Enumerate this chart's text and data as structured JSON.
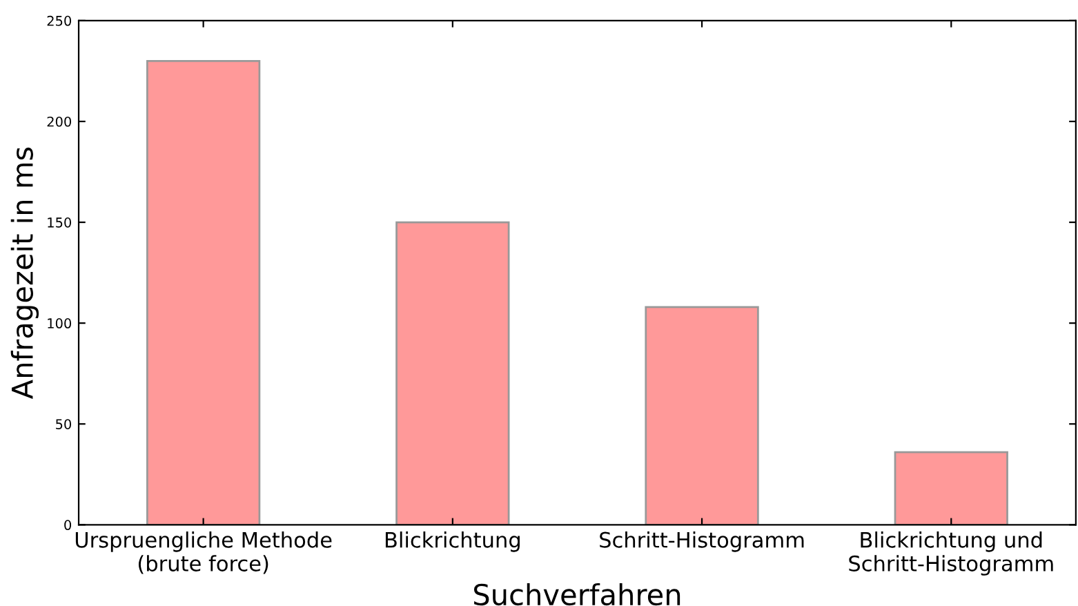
{
  "chart_data": {
    "type": "bar",
    "xlabel": "Suchverfahren",
    "ylabel": "Anfragezeit in ms",
    "categories": [
      "Urspruengliche Methode\n(brute force)",
      "Blickrichtung",
      "Schritt-Histogramm",
      "Blickrichtung und\nSchritt-Histogramm"
    ],
    "values": [
      230,
      150,
      108,
      36
    ],
    "color": "#ff9999",
    "ylim": [
      0,
      250
    ],
    "yticks": [
      0,
      50,
      100,
      150,
      200,
      250
    ],
    "grid": false
  }
}
